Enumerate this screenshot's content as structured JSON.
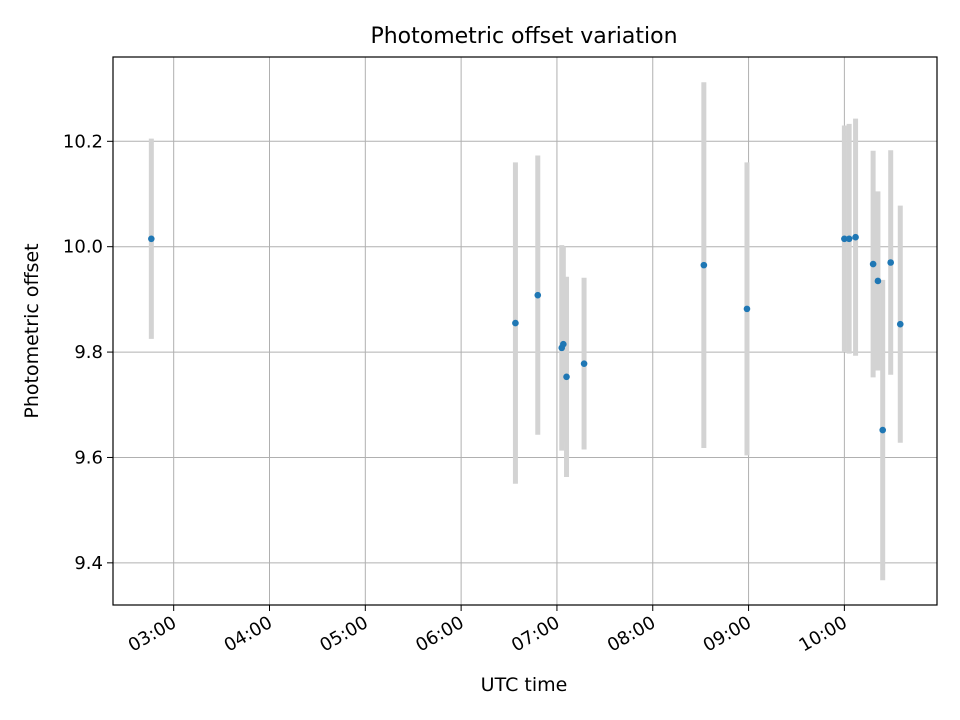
{
  "chart_data": {
    "type": "scatter",
    "title": "Photometric offset variation",
    "xlabel": "UTC time",
    "ylabel": "Photometric offset",
    "x_is_time": true,
    "xlim": [
      "02:22",
      "10:58"
    ],
    "ylim": [
      9.32,
      10.36
    ],
    "x_ticks": [
      "03:00",
      "04:00",
      "05:00",
      "06:00",
      "07:00",
      "08:00",
      "09:00",
      "10:00"
    ],
    "y_ticks": [
      9.4,
      9.6,
      9.8,
      10.0,
      10.2
    ],
    "y_tick_labels": [
      "9.4",
      "9.6",
      "9.8",
      "10.0",
      "10.2"
    ],
    "grid": true,
    "legend": "none",
    "colors": {
      "point": "#1f77b4",
      "errorbar": "#d3d3d3",
      "grid": "#b0b0b0",
      "axis": "#000000"
    },
    "points": [
      {
        "time": "02:46",
        "y": 10.015,
        "err": 0.19
      },
      {
        "time": "06:34",
        "y": 9.855,
        "err": 0.305
      },
      {
        "time": "06:48",
        "y": 9.908,
        "err": 0.265
      },
      {
        "time": "07:03",
        "y": 9.808,
        "err": 0.195
      },
      {
        "time": "07:04",
        "y": 9.815,
        "err": 0.185
      },
      {
        "time": "07:06",
        "y": 9.753,
        "err": 0.19
      },
      {
        "time": "07:17",
        "y": 9.778,
        "err": 0.163
      },
      {
        "time": "08:32",
        "y": 9.965,
        "err": 0.347
      },
      {
        "time": "08:59",
        "y": 9.882,
        "err": 0.278
      },
      {
        "time": "10:00",
        "y": 10.015,
        "err": 0.215
      },
      {
        "time": "10:03",
        "y": 10.015,
        "err": 0.218
      },
      {
        "time": "10:07",
        "y": 10.018,
        "err": 0.225
      },
      {
        "time": "10:18",
        "y": 9.967,
        "err": 0.215
      },
      {
        "time": "10:21",
        "y": 9.935,
        "err": 0.17
      },
      {
        "time": "10:24",
        "y": 9.652,
        "err": 0.285
      },
      {
        "time": "10:29",
        "y": 9.97,
        "err": 0.213
      },
      {
        "time": "10:35",
        "y": 9.853,
        "err": 0.225
      }
    ]
  }
}
